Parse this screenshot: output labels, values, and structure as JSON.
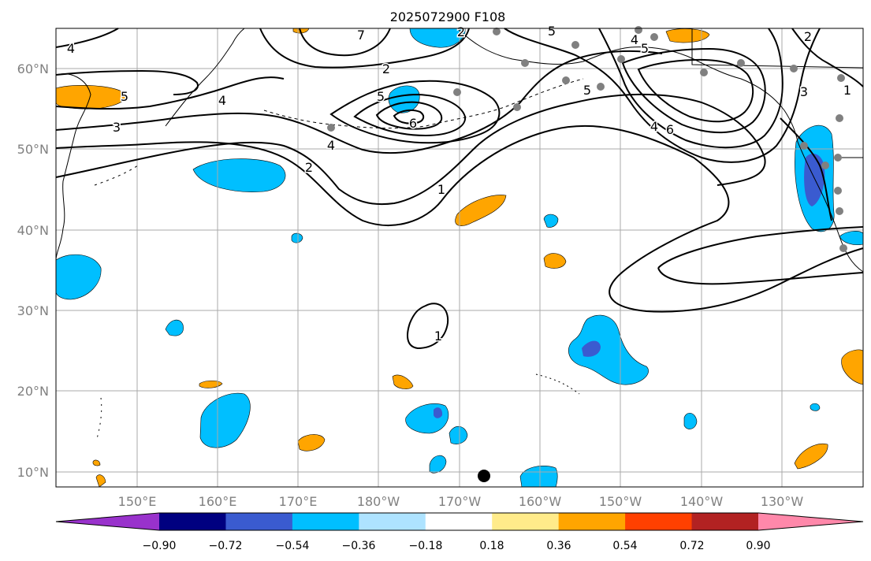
{
  "title": "2025072900 F108",
  "map": {
    "lat_labels": [
      "60°N",
      "50°N",
      "40°N",
      "30°N",
      "20°N",
      "10°N"
    ],
    "lon_labels": [
      "150°E",
      "160°E",
      "170°E",
      "180°W",
      "170°W",
      "160°W",
      "150°W",
      "140°W",
      "130°W"
    ],
    "contour_labels": [
      "4",
      "5",
      "3",
      "4",
      "2",
      "2",
      "1",
      "4",
      "5",
      "6",
      "2",
      "7",
      "5",
      "4",
      "5",
      "6",
      "4",
      "5",
      "2",
      "3",
      "1",
      "1"
    ],
    "colorbar": {
      "colors": [
        "#9932cc",
        "#000080",
        "#3a5bd0",
        "#00bfff",
        "#aee3ff",
        "#ffffff",
        "#ffeb8a",
        "#ffa500",
        "#ff4000",
        "#b22222",
        "#ff88aa"
      ],
      "tick_labels": [
        "−0.90",
        "−0.72",
        "−0.54",
        "−0.36",
        "−0.18",
        "0.18",
        "0.36",
        "0.54",
        "0.72",
        "0.90"
      ]
    },
    "colors": {
      "negative_fill": "#00bfff",
      "strong_negative_fill": "#3a5bd0",
      "positive_fill": "#ffa500",
      "station_marker": "#808080",
      "center_marker": "#000000"
    }
  }
}
